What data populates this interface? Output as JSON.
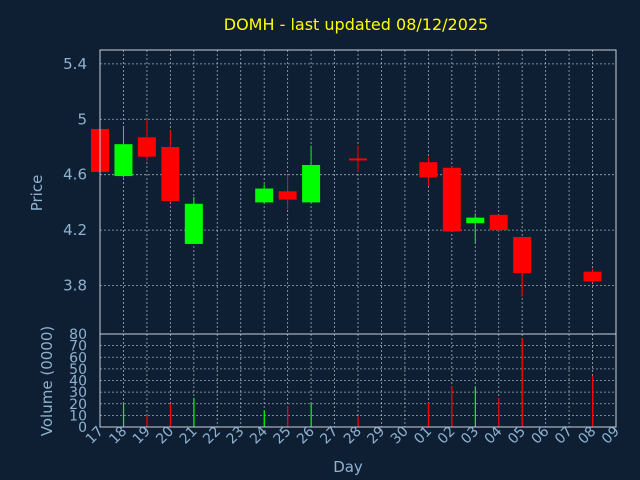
{
  "chart_data": [
    {
      "type": "candlestick",
      "title": "DOMH - last updated 08/12/2025",
      "ylabel": "Price",
      "ylim": [
        3.45,
        5.5
      ],
      "yticks": [
        3.8,
        4.2,
        4.6,
        5,
        5.4
      ],
      "ytick_labels": [
        "3.8",
        "4.2",
        "4.6",
        "5",
        "5.4"
      ],
      "grid": true,
      "colors": {
        "up": "#00ff00",
        "down": "#ff0000",
        "doji": "#ff0000"
      },
      "candles": [
        {
          "day": "17",
          "open": 4.93,
          "high": 4.93,
          "low": 4.61,
          "close": 4.62
        },
        {
          "day": "18",
          "open": 4.59,
          "high": 4.95,
          "low": 4.58,
          "close": 4.82
        },
        {
          "day": "19",
          "open": 4.87,
          "high": 5.0,
          "low": 4.7,
          "close": 4.73
        },
        {
          "day": "20",
          "open": 4.8,
          "high": 4.92,
          "low": 4.4,
          "close": 4.41
        },
        {
          "day": "21",
          "open": 4.1,
          "high": 4.44,
          "low": 4.1,
          "close": 4.39
        },
        {
          "day": "24",
          "open": 4.4,
          "high": 4.53,
          "low": 4.39,
          "close": 4.5
        },
        {
          "day": "25",
          "open": 4.48,
          "high": 4.6,
          "low": 4.35,
          "close": 4.42
        },
        {
          "day": "26",
          "open": 4.4,
          "high": 4.81,
          "low": 4.4,
          "close": 4.67
        },
        {
          "day": "28",
          "open": 4.71,
          "high": 4.81,
          "low": 4.62,
          "close": 4.7
        },
        {
          "day": "01",
          "open": 4.69,
          "high": 4.73,
          "low": 4.52,
          "close": 4.58
        },
        {
          "day": "02",
          "open": 4.65,
          "high": 4.66,
          "low": 4.19,
          "close": 4.19
        },
        {
          "day": "03",
          "open": 4.25,
          "high": 4.32,
          "low": 4.1,
          "close": 4.29
        },
        {
          "day": "04",
          "open": 4.31,
          "high": 4.31,
          "low": 4.19,
          "close": 4.2
        },
        {
          "day": "05",
          "open": 4.15,
          "high": 4.15,
          "low": 3.72,
          "close": 3.89
        },
        {
          "day": "08",
          "open": 3.9,
          "high": 3.92,
          "low": 3.82,
          "close": 3.83
        }
      ]
    },
    {
      "type": "bar",
      "ylabel": "Volume (0000)",
      "xlabel": "Day",
      "ylim": [
        0,
        80
      ],
      "yticks": [
        0,
        10,
        20,
        30,
        40,
        50,
        60,
        70,
        80
      ],
      "ytick_labels": [
        "0",
        "10",
        "20",
        "30",
        "40",
        "50",
        "60",
        "70",
        "80"
      ],
      "grid": true,
      "xticks": [
        "17",
        "18",
        "19",
        "20",
        "21",
        "22",
        "23",
        "24",
        "25",
        "26",
        "27",
        "28",
        "29",
        "30",
        "01",
        "02",
        "03",
        "04",
        "05",
        "06",
        "07",
        "08",
        "09"
      ],
      "volumes": [
        {
          "day": "17",
          "value": 0,
          "color": "#ff0000"
        },
        {
          "day": "18",
          "value": 20,
          "color": "#00ff00"
        },
        {
          "day": "19",
          "value": 10,
          "color": "#ff0000"
        },
        {
          "day": "20",
          "value": 20,
          "color": "#ff0000"
        },
        {
          "day": "21",
          "value": 25,
          "color": "#00ff00"
        },
        {
          "day": "24",
          "value": 14,
          "color": "#00ff00"
        },
        {
          "day": "25",
          "value": 18,
          "color": "#ff0000"
        },
        {
          "day": "26",
          "value": 21,
          "color": "#00ff00"
        },
        {
          "day": "28",
          "value": 9,
          "color": "#ff0000"
        },
        {
          "day": "01",
          "value": 21,
          "color": "#ff0000"
        },
        {
          "day": "02",
          "value": 35,
          "color": "#ff0000"
        },
        {
          "day": "03",
          "value": 34,
          "color": "#00ff00"
        },
        {
          "day": "04",
          "value": 25,
          "color": "#ff0000"
        },
        {
          "day": "05",
          "value": 76,
          "color": "#ff0000"
        },
        {
          "day": "08",
          "value": 44,
          "color": "#ff0000"
        }
      ]
    }
  ]
}
